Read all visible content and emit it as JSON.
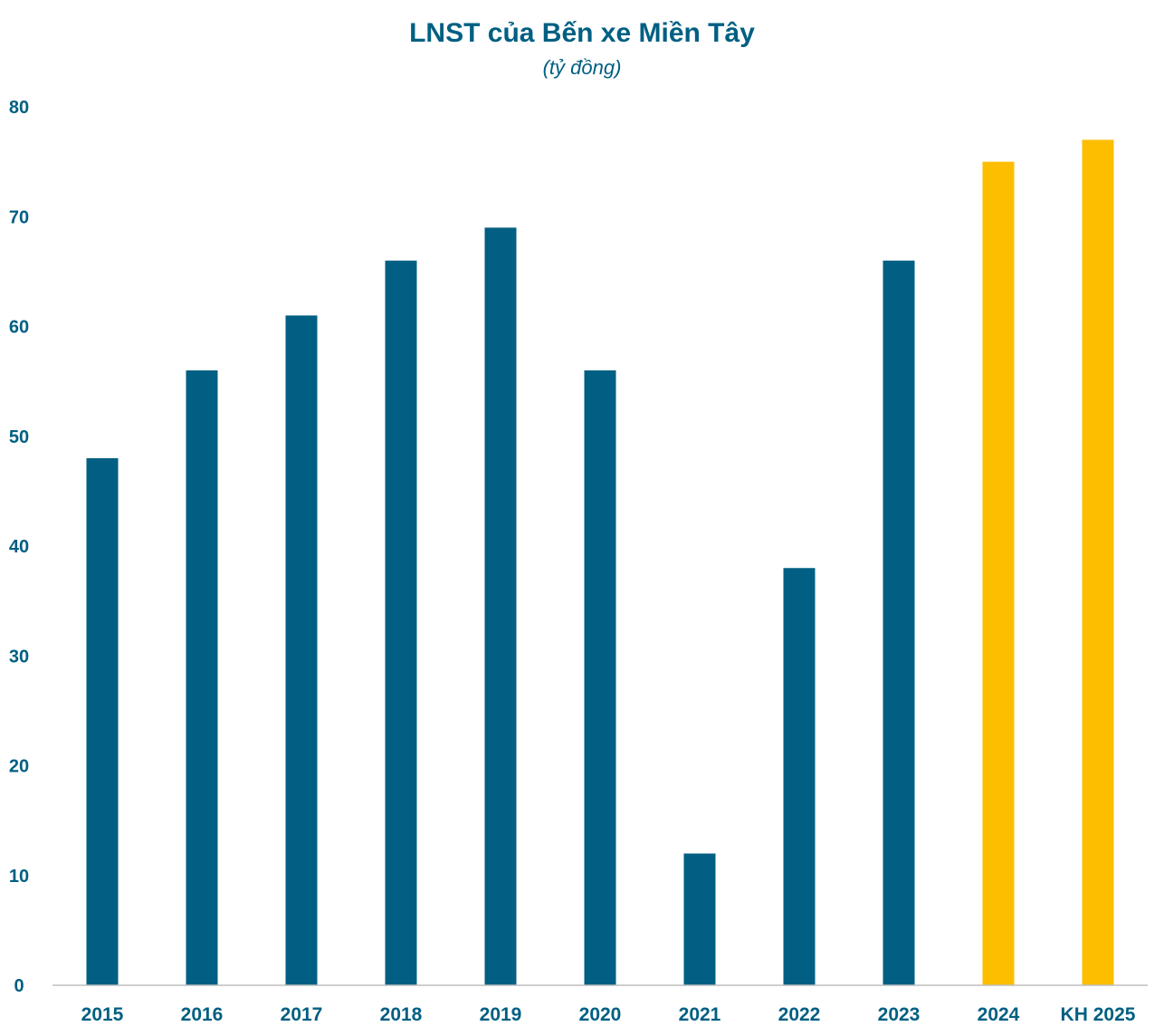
{
  "chart_data": {
    "type": "bar",
    "title": "LNST của Bến xe Miền Tây",
    "subtitle": "(tỷ đồng)",
    "xlabel": "",
    "ylabel": "",
    "categories": [
      "2015",
      "2016",
      "2017",
      "2018",
      "2019",
      "2020",
      "2021",
      "2022",
      "2023",
      "2024",
      "KH 2025"
    ],
    "values": [
      48,
      56,
      61,
      66,
      69,
      56,
      12,
      38,
      66,
      75,
      77
    ],
    "ylim": [
      0,
      80
    ],
    "yticks": [
      "0",
      "10",
      "20",
      "30",
      "40",
      "50",
      "60",
      "70",
      "80"
    ],
    "grid": false,
    "colors": {
      "primary": "#005f82",
      "highlight": "#fdbe00",
      "text": "#005f82",
      "axis": "#bfbfbf"
    },
    "highlighted_categories": [
      "2024",
      "KH 2025"
    ]
  }
}
